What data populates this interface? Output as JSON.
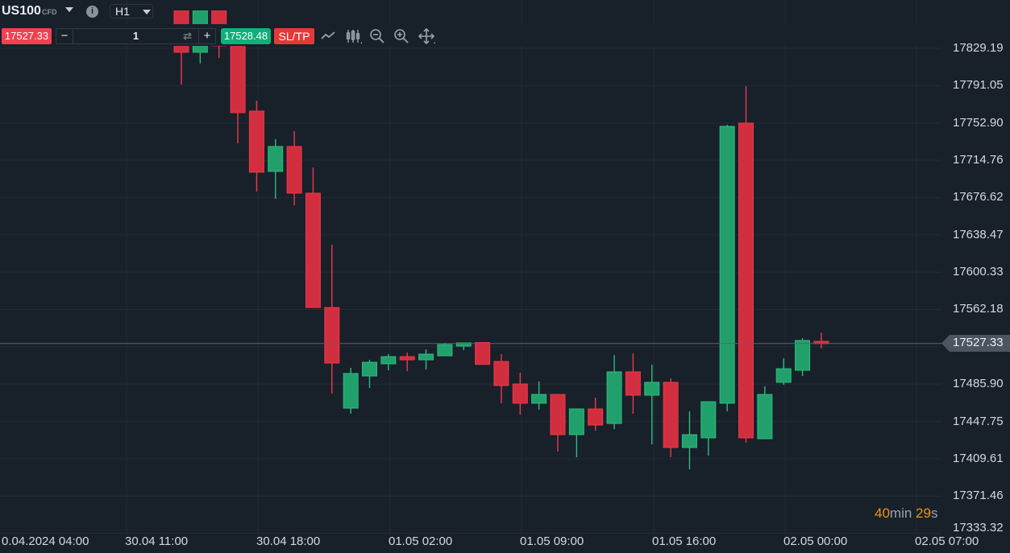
{
  "header": {
    "symbol": "US100",
    "symbol_type": "CFD",
    "timeframe": "H1",
    "sell_price": "17527.33",
    "quantity": "1",
    "buy_price": "17528.48",
    "sltp_label": "SL/TP",
    "minus": "−",
    "plus": "+",
    "swap_glyph": "⇄",
    "info_glyph": "i",
    "icons": [
      "line-chart-icon",
      "candlestick-icon",
      "zoom-out-icon",
      "zoom-in-icon",
      "move-icon"
    ]
  },
  "colors": {
    "background": "#18202a",
    "up": "#22a06b",
    "down": "#d12f3f",
    "sell": "#f2404f",
    "buy": "#0fb07a",
    "sltp": "#e53935",
    "countdown": "#f0950d"
  },
  "countdown": {
    "min": "40",
    "min_unit": "min ",
    "sec": "29",
    "sec_unit": "s"
  },
  "chart_data": {
    "type": "candlestick",
    "current_price": 17527.33,
    "current_price_label": "17527.33",
    "y_ticks": [
      "17829.19",
      "17791.05",
      "17752.90",
      "17714.76",
      "17676.62",
      "17638.47",
      "17600.33",
      "17562.18",
      "17485.90",
      "17447.75",
      "17409.61",
      "17371.46",
      "17333.32"
    ],
    "ylim": [
      17333.32,
      17867.9
    ],
    "x_ticks": [
      "0.04.2024 04:00",
      "30.04 11:00",
      "30.04 18:00",
      "01.05 02:00",
      "01.05 09:00",
      "01.05 16:00",
      "02.05 00:00",
      "02.05 07:00"
    ],
    "grid": true,
    "candles": [
      {
        "o": 17867.9,
        "h": 17867.9,
        "l": 17792.2,
        "c": 17825.1
      },
      {
        "o": 17825.1,
        "h": 17867.9,
        "l": 17813.6,
        "c": 17867.9
      },
      {
        "o": 17867.9,
        "h": 17867.9,
        "l": 17819.3,
        "c": 17831.7
      },
      {
        "o": 17833.3,
        "h": 17840.0,
        "l": 17732.1,
        "c": 17763.4
      },
      {
        "o": 17765.0,
        "h": 17775.7,
        "l": 17682.7,
        "c": 17702.5
      },
      {
        "o": 17703.3,
        "h": 17736.2,
        "l": 17675.3,
        "c": 17728.8
      },
      {
        "o": 17728.8,
        "h": 17744.4,
        "l": 17668.7,
        "c": 17681.1
      },
      {
        "o": 17681.1,
        "h": 17707.4,
        "l": 17564.2,
        "c": 17564.2
      },
      {
        "o": 17564.2,
        "h": 17628.4,
        "l": 17476.1,
        "c": 17507.4
      },
      {
        "o": 17461.3,
        "h": 17502.5,
        "l": 17455.6,
        "c": 17496.7
      },
      {
        "o": 17494.2,
        "h": 17510.7,
        "l": 17481.9,
        "c": 17508.2
      },
      {
        "o": 17506.6,
        "h": 17516.5,
        "l": 17500.0,
        "c": 17514.0
      },
      {
        "o": 17514.0,
        "h": 17518.1,
        "l": 17499.2,
        "c": 17510.7
      },
      {
        "o": 17510.7,
        "h": 17521.4,
        "l": 17500.8,
        "c": 17516.5
      },
      {
        "o": 17514.8,
        "h": 17528.0,
        "l": 17514.8,
        "c": 17526.3
      },
      {
        "o": 17524.7,
        "h": 17528.0,
        "l": 17520.6,
        "c": 17528.0
      },
      {
        "o": 17528.4,
        "h": 17528.4,
        "l": 17506.0,
        "c": 17506.0
      },
      {
        "o": 17509.0,
        "h": 17516.5,
        "l": 17466.3,
        "c": 17484.4
      },
      {
        "o": 17486.0,
        "h": 17497.5,
        "l": 17454.7,
        "c": 17466.3
      },
      {
        "o": 17466.3,
        "h": 17488.5,
        "l": 17459.7,
        "c": 17475.3
      },
      {
        "o": 17475.3,
        "h": 17475.3,
        "l": 17416.9,
        "c": 17434.2
      },
      {
        "o": 17434.2,
        "h": 17460.5,
        "l": 17411.1,
        "c": 17460.5
      },
      {
        "o": 17460.5,
        "h": 17472.0,
        "l": 17438.2,
        "c": 17444.0
      },
      {
        "o": 17445.6,
        "h": 17515.6,
        "l": 17439.9,
        "c": 17498.4
      },
      {
        "o": 17498.4,
        "h": 17517.3,
        "l": 17455.6,
        "c": 17474.5
      },
      {
        "o": 17474.5,
        "h": 17505.8,
        "l": 17424.3,
        "c": 17487.7
      },
      {
        "o": 17487.7,
        "h": 17491.8,
        "l": 17411.1,
        "c": 17421.0
      },
      {
        "o": 17421.0,
        "h": 17458.0,
        "l": 17398.8,
        "c": 17434.2
      },
      {
        "o": 17430.9,
        "h": 17467.9,
        "l": 17412.8,
        "c": 17467.9
      },
      {
        "o": 17466.3,
        "h": 17751.0,
        "l": 17458.0,
        "c": 17749.4
      },
      {
        "o": 17752.7,
        "h": 17790.5,
        "l": 17425.9,
        "c": 17430.9
      },
      {
        "o": 17430.0,
        "h": 17483.5,
        "l": 17430.0,
        "c": 17475.3
      },
      {
        "o": 17487.7,
        "h": 17512.3,
        "l": 17485.2,
        "c": 17501.6
      },
      {
        "o": 17500.0,
        "h": 17532.9,
        "l": 17494.2,
        "c": 17530.5
      },
      {
        "o": 17529.6,
        "h": 17538.7,
        "l": 17522.2,
        "c": 17527.3
      }
    ]
  }
}
